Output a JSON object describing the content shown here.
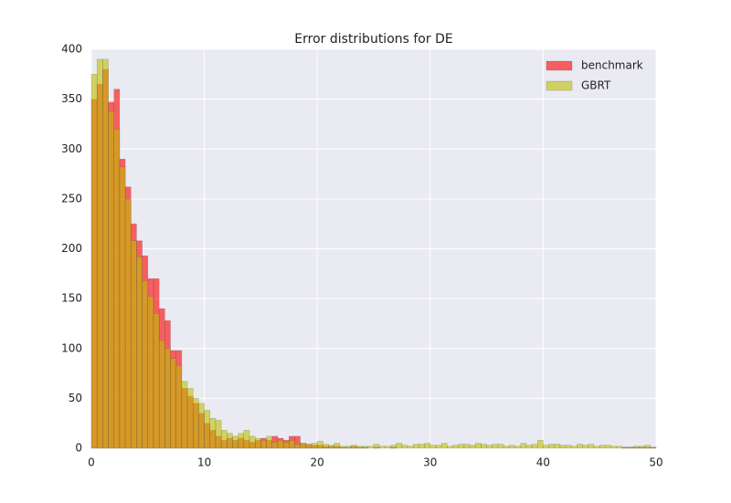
{
  "chart_data": {
    "type": "histogram",
    "title": "Error distributions for DE",
    "bins": [
      0,
      0.5,
      1,
      1.5,
      2,
      2.5,
      3,
      3.5,
      4,
      4.5,
      5,
      5.5,
      6,
      6.5,
      7,
      7.5,
      8,
      8.5,
      9,
      9.5,
      10,
      10.5,
      11,
      11.5,
      12,
      12.5,
      13,
      13.5,
      14,
      14.5,
      15,
      15.5,
      16,
      16.5,
      17,
      17.5,
      18,
      18.5,
      19,
      19.5,
      20,
      20.5,
      21,
      21.5,
      22,
      22.5,
      23,
      23.5,
      24,
      24.5,
      25,
      25.5,
      26,
      26.5,
      27,
      27.5,
      28,
      28.5,
      29,
      29.5,
      30,
      30.5,
      31,
      31.5,
      32,
      32.5,
      33,
      33.5,
      34,
      34.5,
      35,
      35.5,
      36,
      36.5,
      37,
      37.5,
      38,
      38.5,
      39,
      39.5,
      40,
      40.5,
      41,
      41.5,
      42,
      42.5,
      43,
      43.5,
      44,
      44.5,
      45,
      45.5,
      46,
      46.5,
      47,
      47.5,
      48,
      48.5,
      49,
      49.5,
      50
    ],
    "series": [
      {
        "name": "benchmark",
        "color": "#ff0000",
        "values": [
          350,
          365,
          380,
          347,
          360,
          290,
          262,
          225,
          208,
          193,
          170,
          170,
          140,
          128,
          98,
          98,
          60,
          52,
          45,
          35,
          25,
          18,
          12,
          8,
          10,
          8,
          10,
          8,
          6,
          8,
          10,
          8,
          12,
          10,
          8,
          12,
          12,
          5,
          4,
          3,
          3,
          2,
          2,
          2,
          1,
          1,
          2,
          1,
          1,
          0,
          1,
          0,
          0,
          1,
          0,
          0,
          0,
          0,
          0,
          0,
          0,
          0,
          0,
          0,
          0,
          0,
          0,
          0,
          0,
          0,
          0,
          0,
          0,
          0,
          0,
          0,
          0,
          0,
          0,
          0,
          0,
          0,
          0,
          0,
          0,
          0,
          0,
          0,
          0,
          0,
          0,
          0,
          0,
          0,
          1,
          1,
          1,
          1,
          1,
          1
        ]
      },
      {
        "name": "GBRT",
        "color": "#bfbf00",
        "values": [
          375,
          390,
          390,
          338,
          320,
          282,
          250,
          208,
          192,
          168,
          152,
          135,
          108,
          100,
          90,
          83,
          67,
          60,
          50,
          45,
          38,
          30,
          28,
          18,
          15,
          12,
          15,
          18,
          12,
          10,
          8,
          12,
          6,
          8,
          6,
          8,
          4,
          5,
          4,
          5,
          7,
          4,
          3,
          5,
          2,
          2,
          3,
          2,
          2,
          2,
          4,
          2,
          2,
          3,
          5,
          3,
          2,
          4,
          4,
          5,
          3,
          3,
          5,
          2,
          3,
          4,
          4,
          3,
          5,
          4,
          3,
          4,
          4,
          2,
          3,
          2,
          5,
          3,
          4,
          8,
          3,
          4,
          4,
          3,
          3,
          2,
          4,
          3,
          4,
          2,
          3,
          3,
          2,
          2,
          1,
          1,
          2,
          2,
          3,
          1
        ]
      }
    ],
    "xlim": [
      0,
      50
    ],
    "ylim": [
      0,
      400
    ],
    "xticks": [
      0,
      10,
      20,
      30,
      40,
      50
    ],
    "yticks": [
      0,
      50,
      100,
      150,
      200,
      250,
      300,
      350,
      400
    ],
    "grid": true,
    "legend": "upper right"
  }
}
